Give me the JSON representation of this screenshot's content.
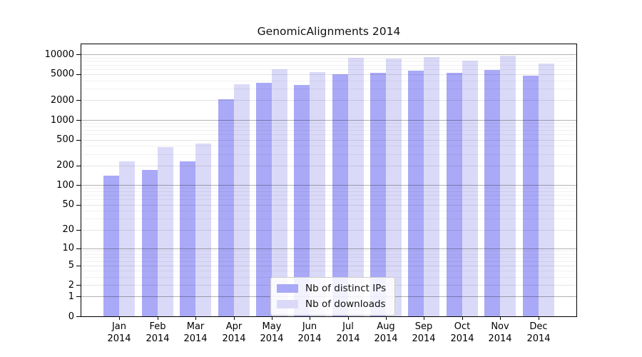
{
  "title": "GenomicAlignments 2014",
  "legend": {
    "items": [
      {
        "label": "Nb of distinct IPs",
        "color": "#a9a9f7"
      },
      {
        "label": "Nb of downloads",
        "color": "#dadaf8"
      }
    ]
  },
  "y_axis": {
    "tick_labels": [
      "0",
      "1",
      "2",
      "5",
      "10",
      "20",
      "50",
      "100",
      "200",
      "500",
      "1000",
      "2000",
      "5000",
      "10000"
    ]
  },
  "x_axis": {
    "year_label": "2014"
  },
  "colors": {
    "bar_dark": "#a9a9f7",
    "bar_light": "#dadaf8",
    "grid_major": "rgba(0,0,0,0.30)",
    "grid_labeled_minor": "rgba(0,0,0,0.10)",
    "grid_minor": "rgba(0,0,0,0.055)",
    "frame": "#000000"
  },
  "chart_data": {
    "type": "bar",
    "title": "GenomicAlignments 2014",
    "categories": [
      "Jan",
      "Feb",
      "Mar",
      "Apr",
      "May",
      "Jun",
      "Jul",
      "Aug",
      "Sep",
      "Oct",
      "Nov",
      "Dec"
    ],
    "year": "2014",
    "series": [
      {
        "name": "Nb of distinct IPs",
        "color": "#a9a9f7",
        "values": [
          140,
          170,
          230,
          2050,
          3700,
          3450,
          5000,
          5250,
          5600,
          5200,
          5800,
          4700
        ]
      },
      {
        "name": "Nb of downloads",
        "color": "#dadaf8",
        "values": [
          235,
          385,
          440,
          3500,
          5900,
          5450,
          9000,
          8700,
          9100,
          8100,
          9500,
          7250
        ]
      }
    ],
    "xlabel": "",
    "ylabel": "",
    "y_scale": "log10(1+v)",
    "y_ticks": [
      0,
      1,
      2,
      5,
      10,
      20,
      50,
      100,
      200,
      500,
      1000,
      2000,
      5000,
      10000
    ],
    "ylim": [
      0,
      15000
    ],
    "grid": true,
    "legend_position": "bottom-center"
  }
}
